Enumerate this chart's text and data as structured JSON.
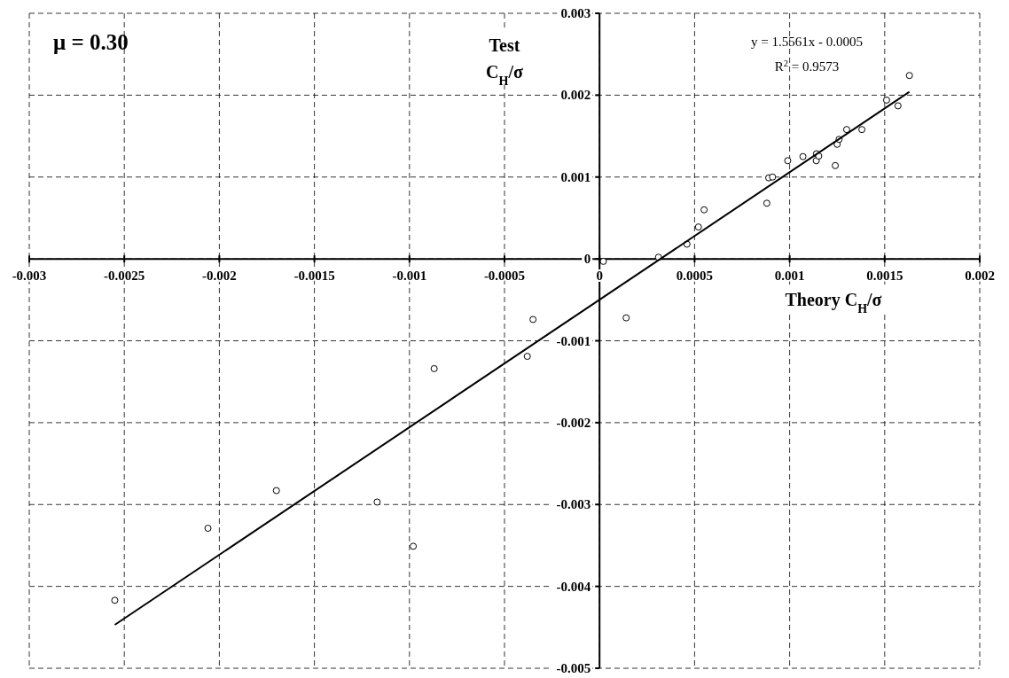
{
  "chart_data": {
    "type": "scatter",
    "xlabel": "Theory C$_{H}$/σ",
    "ylabel": "Test C$_{H}$/σ",
    "annotations": [
      "μ = 0.30",
      "y = 1.5561x - 0.0005",
      "R$^{2}$ = 0.9573"
    ],
    "xlim": [
      -0.003,
      0.002
    ],
    "xticks": [
      -0.003,
      -0.0025,
      -0.002,
      -0.0015,
      -0.001,
      -0.0005,
      0,
      0.0005,
      0.001,
      0.0015,
      0.002
    ],
    "ylim": [
      -0.005,
      0.003
    ],
    "yticks": [
      -0.005,
      -0.004,
      -0.003,
      -0.002,
      -0.001,
      0,
      0.001,
      0.002,
      0.003
    ],
    "grid": true,
    "marker": "circle",
    "series": [
      {
        "color": "#000000",
        "x": [
          2e-05,
          0.00031,
          0.00046,
          0.00052,
          0.00055,
          0.00088,
          0.00089,
          0.00091,
          0.00099,
          0.00107,
          0.001141,
          0.00114,
          0.001153,
          0.00124,
          0.00125,
          0.00126,
          0.0013,
          0.00138,
          0.00151,
          0.00157,
          0.00163,
          -0.00035,
          0.00014,
          -0.00038,
          -0.00087,
          -0.0017,
          -0.00117,
          -0.00206,
          -0.00098,
          -0.00255
        ],
        "values": [
          -3e-05,
          2e-05,
          0.00018,
          0.00039,
          0.0006,
          0.00068,
          0.00099,
          0.001,
          0.0012,
          0.00125,
          0.001284,
          0.0012,
          0.001256,
          0.00114,
          0.0014,
          0.00146,
          0.00158,
          0.00158,
          0.00194,
          0.00187,
          0.00224,
          -0.00074,
          -0.00072,
          -0.00119,
          -0.00134,
          -0.00283,
          -0.00297,
          -0.00329,
          -0.00351,
          -0.00417
        ]
      },
      {
        "type": "line",
        "color": "#000000",
        "marker": "none",
        "line_style": "solid",
        "x": [
          -0.00255,
          0.00163
        ],
        "values": [
          -0.00447,
          0.00204
        ]
      }
    ]
  }
}
